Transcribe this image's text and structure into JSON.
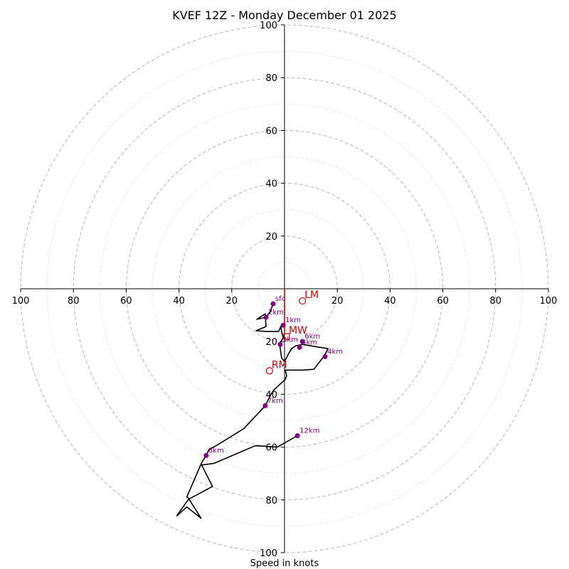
{
  "chart_data": {
    "type": "hodograph",
    "title": "KVEF 12Z - Monday December 01 2025",
    "xlabel": "Speed in knots",
    "max_speed": 100,
    "major_rings": [
      20,
      40,
      60,
      80,
      100
    ],
    "minor_rings": [
      10,
      30,
      50,
      70,
      90
    ],
    "x_ticks": [
      {
        "value": -100,
        "label": "100"
      },
      {
        "value": -80,
        "label": "80"
      },
      {
        "value": -60,
        "label": "60"
      },
      {
        "value": -40,
        "label": "40"
      },
      {
        "value": -20,
        "label": "20"
      },
      {
        "value": 20,
        "label": "20"
      },
      {
        "value": 40,
        "label": "40"
      },
      {
        "value": 60,
        "label": "60"
      },
      {
        "value": 80,
        "label": "80"
      },
      {
        "value": 100,
        "label": "100"
      }
    ],
    "y_ticks": [
      {
        "value": 100,
        "label": "100"
      },
      {
        "value": 80,
        "label": "80"
      },
      {
        "value": 60,
        "label": "60"
      },
      {
        "value": 40,
        "label": "40"
      },
      {
        "value": 20,
        "label": "20"
      },
      {
        "value": -20,
        "label": "20"
      },
      {
        "value": -40,
        "label": "40"
      },
      {
        "value": -60,
        "label": "60"
      },
      {
        "value": -80,
        "label": "80"
      },
      {
        "value": -100,
        "label": "100"
      }
    ],
    "line_color": "#000000",
    "marker_color": "#800080",
    "motion_color": "#cc0000",
    "trace": [
      [
        -4.3,
        -5.7
      ],
      [
        -5.4,
        -8.6
      ],
      [
        -7.0,
        -10.8
      ],
      [
        -10.5,
        -11.6
      ],
      [
        -7.3,
        -9.5
      ],
      [
        -7.0,
        -14.3
      ],
      [
        -10.8,
        -15.9
      ],
      [
        -6.8,
        -16.2
      ],
      [
        -2.2,
        -16.2
      ],
      [
        -1.4,
        -14.3
      ],
      [
        -1.1,
        -16.2
      ],
      [
        -0.5,
        -18.6
      ],
      [
        -1.9,
        -20.8
      ],
      [
        -1.1,
        -26.2
      ],
      [
        0.0,
        -27.6
      ],
      [
        1.4,
        -24.9
      ],
      [
        2.7,
        -22.7
      ],
      [
        4.3,
        -21.6
      ],
      [
        6.8,
        -21.1
      ],
      [
        16.5,
        -22.7
      ],
      [
        15.1,
        -25.4
      ],
      [
        11.1,
        -30.5
      ],
      [
        7.0,
        -30.8
      ],
      [
        2.4,
        -30.8
      ],
      [
        0.3,
        -30.8
      ],
      [
        0.8,
        -33.0
      ],
      [
        0.3,
        -34.3
      ],
      [
        -4.1,
        -38.4
      ],
      [
        -5.1,
        -40.0
      ],
      [
        -7.3,
        -44.3
      ],
      [
        -15.4,
        -53.0
      ],
      [
        -25.9,
        -59.5
      ],
      [
        -28.6,
        -60.9
      ],
      [
        -29.7,
        -63.2
      ],
      [
        -31.4,
        -65.9
      ],
      [
        -37.0,
        -78.9
      ],
      [
        -36.2,
        -79.5
      ],
      [
        -40.8,
        -86.0
      ],
      [
        -37.0,
        -82.7
      ],
      [
        -31.6,
        -87.0
      ],
      [
        -36.2,
        -79.7
      ],
      [
        -27.3,
        -74.9
      ],
      [
        -31.4,
        -66.8
      ],
      [
        -26.8,
        -66.2
      ],
      [
        -11.1,
        -59.5
      ],
      [
        -2.7,
        -60.0
      ],
      [
        4.9,
        -55.7
      ]
    ],
    "height_markers": [
      {
        "label": "sfc",
        "u": -4.3,
        "v": -5.7
      },
      {
        "label": "2km",
        "u": -7.0,
        "v": -10.8
      },
      {
        "label": "1km",
        "u": -0.5,
        "v": -13.8
      },
      {
        "label": "3km",
        "u": -1.6,
        "v": -21.1
      },
      {
        "label": "6km",
        "u": 6.8,
        "v": -20.0
      },
      {
        "label": "5km",
        "u": 5.7,
        "v": -22.2
      },
      {
        "label": "4km",
        "u": 15.4,
        "v": -25.7
      },
      {
        "label": "7km",
        "u": -7.3,
        "v": -44.3
      },
      {
        "label": "8km",
        "u": -29.7,
        "v": -63.2
      },
      {
        "label": "12km",
        "u": 4.9,
        "v": -55.7
      }
    ],
    "storm_motion": [
      {
        "label": "LM",
        "u": 6.8,
        "v": -4.6
      },
      {
        "label": "MW",
        "u": 0.8,
        "v": -18.1
      },
      {
        "label": "RM",
        "u": -5.7,
        "v": -31.1
      }
    ],
    "storm_vector": {
      "u": 0.0,
      "v": -16.5
    }
  }
}
